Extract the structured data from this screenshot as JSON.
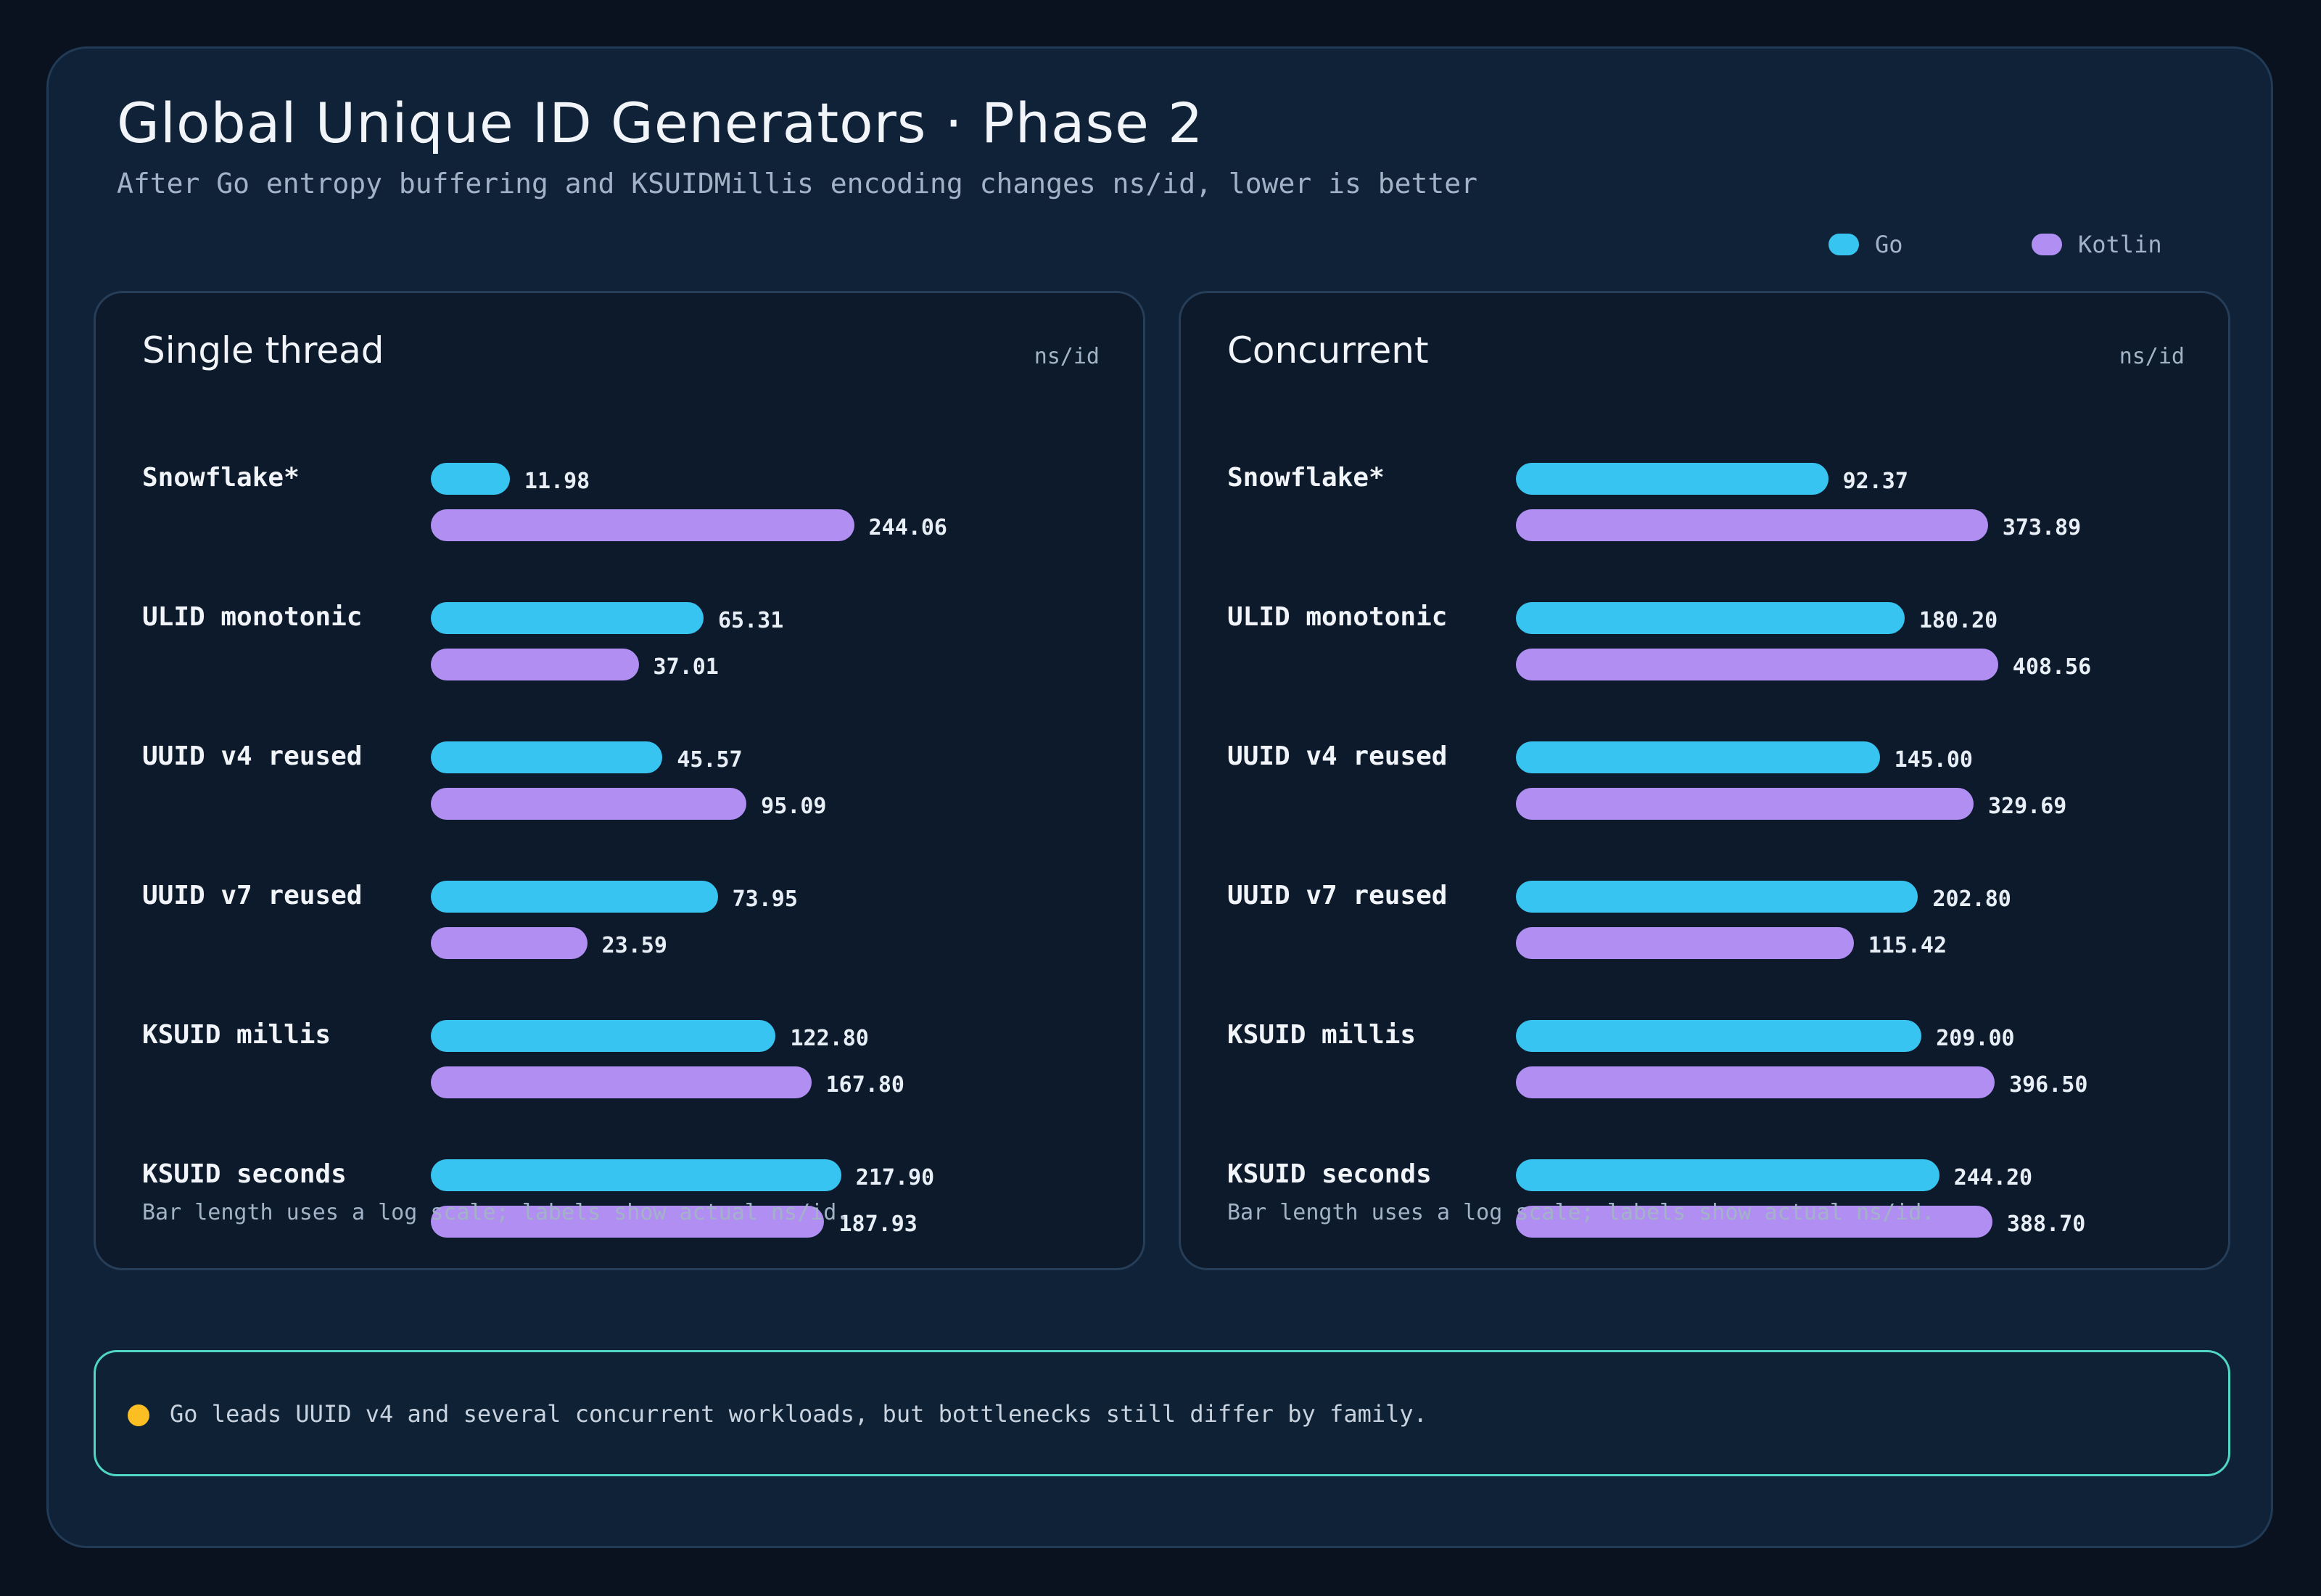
{
  "header": {
    "title": "Global Unique ID Generators · Phase 2",
    "subtitle": "After Go entropy buffering and KSUIDMillis encoding changes  ns/id, lower is better"
  },
  "legend": {
    "go": "Go",
    "kotlin": "Kotlin"
  },
  "colors": {
    "go": "#38c4f0",
    "kotlin": "#b18ef2",
    "insight_dot": "#fbbf24",
    "insight_border": "#4fd6c4"
  },
  "chart_data": [
    {
      "type": "bar",
      "orientation": "horizontal",
      "title": "Single thread",
      "unit_label": "ns/id ",
      "scale": "log",
      "categories": [
        "Snowflake*",
        "ULID monotonic",
        "UUID v4 reused",
        "UUID v7 reused",
        "KSUID millis",
        "KSUID seconds"
      ],
      "series": [
        {
          "name": "Go",
          "values": [
            11.98,
            65.31,
            45.57,
            73.95,
            122.8,
            217.9
          ],
          "labels": [
            "11.98",
            "65.31",
            "45.57",
            "73.95",
            "122.80",
            "217.90"
          ]
        },
        {
          "name": "Kotlin",
          "values": [
            244.06,
            37.01,
            95.09,
            23.59,
            167.8,
            187.93
          ],
          "labels": [
            "244.06",
            "37.01",
            "95.09",
            "23.59",
            "167.80",
            "187.93"
          ]
        }
      ],
      "footnote": "Bar length uses a log scale; labels show actual ns/id."
    },
    {
      "type": "bar",
      "orientation": "horizontal",
      "title": "Concurrent",
      "unit_label": "ns/id ",
      "scale": "log",
      "categories": [
        "Snowflake*",
        "ULID monotonic",
        "UUID v4 reused",
        "UUID v7 reused",
        "KSUID millis",
        "KSUID seconds"
      ],
      "series": [
        {
          "name": "Go",
          "values": [
            92.37,
            180.2,
            145.0,
            202.8,
            209.0,
            244.2
          ],
          "labels": [
            "92.37",
            "180.20",
            "145.00",
            "202.80",
            "209.00",
            "244.20"
          ]
        },
        {
          "name": "Kotlin",
          "values": [
            373.89,
            408.56,
            329.69,
            115.42,
            396.5,
            388.7
          ],
          "labels": [
            "373.89",
            "408.56",
            "329.69",
            "115.42",
            "396.50",
            "388.70"
          ]
        }
      ],
      "footnote": "Bar length uses a log scale; labels show actual ns/id."
    }
  ],
  "insight": {
    "text": "Go leads UUID v4 and several concurrent workloads, but bottlenecks still differ by family."
  }
}
